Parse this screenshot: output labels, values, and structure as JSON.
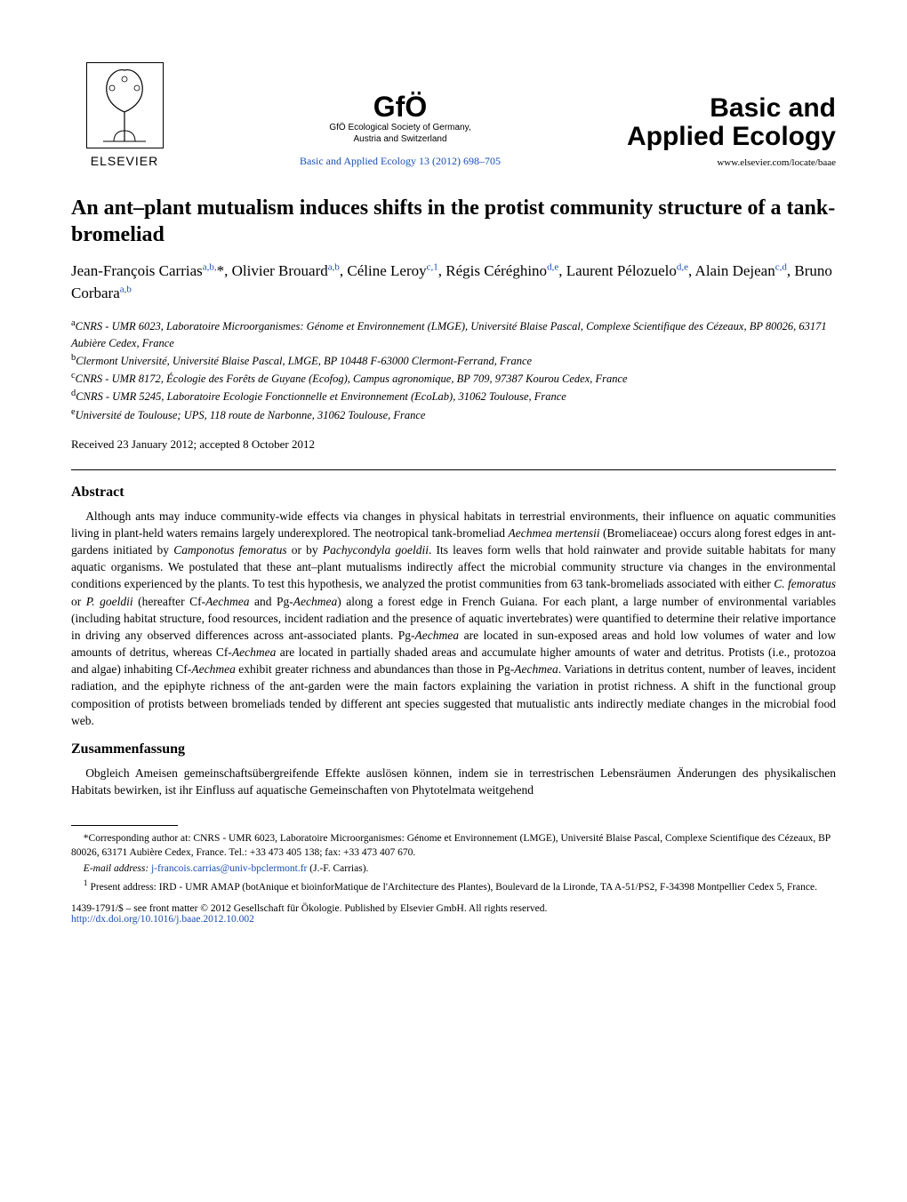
{
  "header": {
    "elsevier_name": "ELSEVIER",
    "gfo_logo": "GfÖ",
    "gfo_sub1": "GfÖ Ecological Society of Germany,",
    "gfo_sub2": "Austria and Switzerland",
    "journal_ref": "Basic and Applied Ecology 13 (2012) 698–705",
    "journal_title_line1": "Basic and",
    "journal_title_line2": "Applied Ecology",
    "journal_url": "www.elsevier.com/locate/baae"
  },
  "article": {
    "title": "An ant–plant mutualism induces shifts in the protist community structure of a tank-bromeliad",
    "authors_html": "Jean-François Carrias<sup class=\"aff-link\">a,b,</sup>*, Olivier Brouard<sup class=\"aff-link\">a,b</sup>, Céline Leroy<sup class=\"aff-link\">c,1</sup>, Régis Céréghino<sup class=\"aff-link\">d,e</sup>, Laurent Pélozuelo<sup class=\"aff-link\">d,e</sup>, Alain Dejean<sup class=\"aff-link\">c,d</sup>, Bruno Corbara<sup class=\"aff-link\">a,b</sup>",
    "affiliations": [
      "<sup>a</sup>CNRS - UMR 6023, Laboratoire Microorganismes: Génome et Environnement (LMGE), Université Blaise Pascal, Complexe Scientifique des Cézeaux, BP 80026, 63171 Aubière Cedex, France",
      "<sup>b</sup>Clermont Université, Université Blaise Pascal, LMGE, BP 10448 F-63000 Clermont-Ferrand, France",
      "<sup>c</sup>CNRS - UMR 8172, Écologie des Forêts de Guyane (Ecofog), Campus agronomique, BP 709, 97387 Kourou Cedex, France",
      "<sup>d</sup>CNRS - UMR 5245, Laboratoire Ecologie Fonctionnelle et Environnement (EcoLab), 31062 Toulouse, France",
      "<sup>e</sup>Université de Toulouse; UPS, 118 route de Narbonne, 31062 Toulouse, France"
    ],
    "dates": "Received 23 January 2012; accepted 8 October 2012"
  },
  "abstract": {
    "heading": "Abstract",
    "body": "Although ants may induce community-wide effects via changes in physical habitats in terrestrial environments, their influence on aquatic communities living in plant-held waters remains largely underexplored. The neotropical tank-bromeliad <em>Aechmea mertensii</em> (Bromeliaceae) occurs along forest edges in ant-gardens initiated by <em>Camponotus femoratus</em> or by <em>Pachycondyla goeldii</em>. Its leaves form wells that hold rainwater and provide suitable habitats for many aquatic organisms. We postulated that these ant–plant mutualisms indirectly affect the microbial community structure via changes in the environmental conditions experienced by the plants. To test this hypothesis, we analyzed the protist communities from 63 tank-bromeliads associated with either <em>C. femoratus</em> or <em>P. goeldii</em> (hereafter Cf-<em>Aechmea</em> and Pg-<em>Aechmea</em>) along a forest edge in French Guiana. For each plant, a large number of environmental variables (including habitat structure, food resources, incident radiation and the presence of aquatic invertebrates) were quantified to determine their relative importance in driving any observed differences across ant-associated plants. Pg-<em>Aechmea</em> are located in sun-exposed areas and hold low volumes of water and low amounts of detritus, whereas Cf-<em>Aechmea</em> are located in partially shaded areas and accumulate higher amounts of water and detritus. Protists (i.e., protozoa and algae) inhabiting Cf-<em>Aechmea</em> exhibit greater richness and abundances than those in Pg-<em>Aechmea</em>. Variations in detritus content, number of leaves, incident radiation, and the epiphyte richness of the ant-garden were the main factors explaining the variation in protist richness. A shift in the functional group composition of protists between bromeliads tended by different ant species suggested that mutualistic ants indirectly mediate changes in the microbial food web."
  },
  "zusammen": {
    "heading": "Zusammenfassung",
    "body": "Obgleich Ameisen gemeinschaftsübergreifende Effekte auslösen können, indem sie in terrestrischen Lebensräumen Änderungen des physikalischen Habitats bewirken, ist ihr Einfluss auf aquatische Gemeinschaften von Phytotelmata weitgehend"
  },
  "footnotes": {
    "corr": "*Corresponding author at: CNRS - UMR 6023, Laboratoire Microorganismes: Génome et Environnement (LMGE), Université Blaise Pascal, Complexe Scientifique des Cézeaux, BP 80026, 63171 Aubière Cedex, France. Tel.: +33 473 405 138; fax: +33 473 407 670.",
    "email_label": "E-mail address:",
    "email": "j-francois.carrias@univ-bpclermont.fr",
    "email_suffix": "(J.-F. Carrias).",
    "present": "Present address: IRD - UMR AMAP (botAnique et bioinforMatique de l'Architecture des Plantes), Boulevard de la Lironde, TA A-51/PS2, F-34398 Montpellier Cedex 5, France.",
    "present_sup": "1"
  },
  "copyright": {
    "line": "1439-1791/$ – see front matter © 2012 Gesellschaft für Ökologie. Published by Elsevier GmbH. All rights reserved.",
    "doi": "http://dx.doi.org/10.1016/j.baae.2012.10.002"
  },
  "colors": {
    "link": "#1a4db3",
    "text": "#000000",
    "bg": "#ffffff"
  }
}
